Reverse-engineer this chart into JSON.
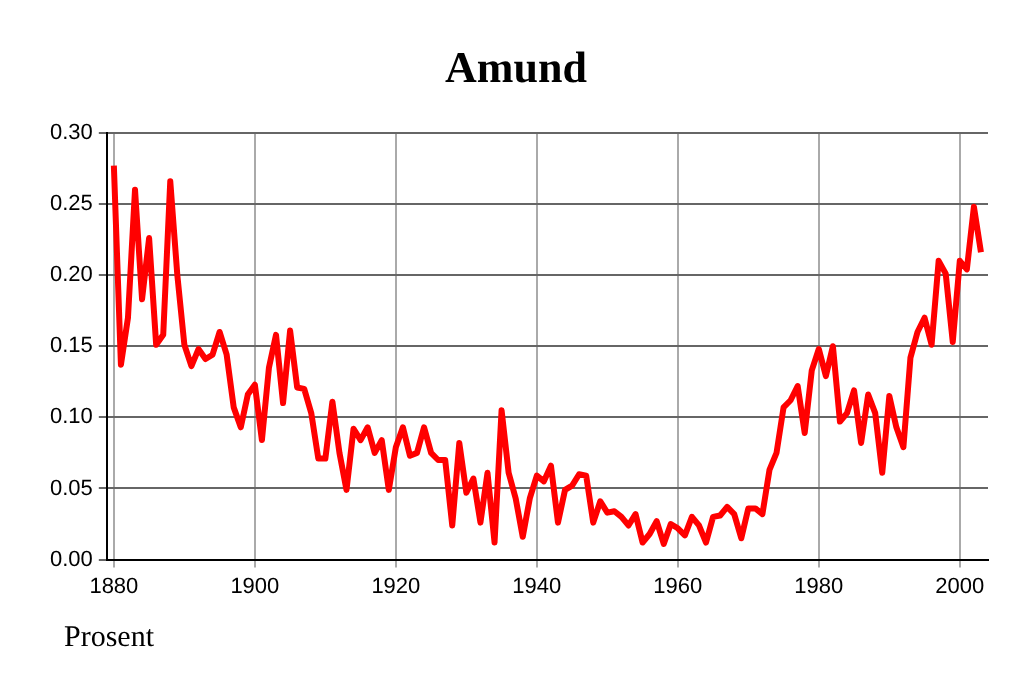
{
  "chart_data": {
    "type": "line",
    "title": "Amund",
    "ylabel": "Prosent",
    "x": [
      1880,
      1881,
      1882,
      1883,
      1884,
      1885,
      1886,
      1887,
      1888,
      1889,
      1890,
      1891,
      1892,
      1893,
      1894,
      1895,
      1896,
      1897,
      1898,
      1899,
      1900,
      1901,
      1902,
      1903,
      1904,
      1905,
      1906,
      1907,
      1908,
      1909,
      1910,
      1911,
      1912,
      1913,
      1914,
      1915,
      1916,
      1917,
      1918,
      1919,
      1920,
      1921,
      1922,
      1923,
      1924,
      1925,
      1926,
      1927,
      1928,
      1929,
      1930,
      1931,
      1932,
      1933,
      1934,
      1935,
      1936,
      1937,
      1938,
      1939,
      1940,
      1941,
      1942,
      1943,
      1944,
      1945,
      1946,
      1947,
      1948,
      1949,
      1950,
      1951,
      1952,
      1953,
      1954,
      1955,
      1956,
      1957,
      1958,
      1959,
      1960,
      1961,
      1962,
      1963,
      1964,
      1965,
      1966,
      1967,
      1968,
      1969,
      1970,
      1971,
      1972,
      1973,
      1974,
      1975,
      1976,
      1977,
      1978,
      1979,
      1980,
      1981,
      1982,
      1983,
      1984,
      1985,
      1986,
      1987,
      1988,
      1989,
      1990,
      1991,
      1992,
      1993,
      1994,
      1995,
      1996,
      1997,
      1998,
      1999,
      2000,
      2001,
      2002,
      2003
    ],
    "series": [
      {
        "color": "#ff0000",
        "values": [
          0.277,
          0.137,
          0.17,
          0.26,
          0.183,
          0.226,
          0.151,
          0.158,
          0.266,
          0.2,
          0.151,
          0.136,
          0.148,
          0.141,
          0.144,
          0.16,
          0.144,
          0.107,
          0.093,
          0.116,
          0.123,
          0.084,
          0.135,
          0.158,
          0.11,
          0.161,
          0.121,
          0.12,
          0.103,
          0.071,
          0.071,
          0.111,
          0.075,
          0.049,
          0.092,
          0.084,
          0.093,
          0.075,
          0.084,
          0.049,
          0.079,
          0.093,
          0.073,
          0.075,
          0.093,
          0.075,
          0.07,
          0.07,
          0.024,
          0.082,
          0.047,
          0.057,
          0.026,
          0.061,
          0.012,
          0.105,
          0.061,
          0.043,
          0.016,
          0.043,
          0.059,
          0.055,
          0.066,
          0.026,
          0.049,
          0.052,
          0.06,
          0.059,
          0.026,
          0.041,
          0.033,
          0.034,
          0.03,
          0.024,
          0.032,
          0.012,
          0.018,
          0.027,
          0.011,
          0.025,
          0.022,
          0.017,
          0.03,
          0.024,
          0.012,
          0.03,
          0.031,
          0.037,
          0.032,
          0.015,
          0.036,
          0.036,
          0.032,
          0.063,
          0.075,
          0.107,
          0.112,
          0.122,
          0.089,
          0.133,
          0.148,
          0.129,
          0.15,
          0.097,
          0.103,
          0.119,
          0.082,
          0.116,
          0.103,
          0.061,
          0.115,
          0.093,
          0.079,
          0.142,
          0.16,
          0.17,
          0.151,
          0.21,
          0.201,
          0.153,
          0.21,
          0.204,
          0.248,
          0.216
        ]
      }
    ],
    "xlim": [
      1879,
      2004
    ],
    "xticks": [
      1880,
      1900,
      1920,
      1940,
      1960,
      1980,
      2000
    ],
    "ylim": [
      0,
      0.3
    ],
    "yticks": [
      {
        "value": 0,
        "label": "0.00"
      },
      {
        "value": 0.05,
        "label": "0.05"
      },
      {
        "value": 0.1,
        "label": "0.10"
      },
      {
        "value": 0.15,
        "label": "0.15"
      },
      {
        "value": 0.2,
        "label": "0.20"
      },
      {
        "value": 0.25,
        "label": "0.25"
      },
      {
        "value": 0.3,
        "label": "0.30"
      }
    ],
    "grid": true,
    "legend": false,
    "marker": "none",
    "line_style": "solid"
  }
}
